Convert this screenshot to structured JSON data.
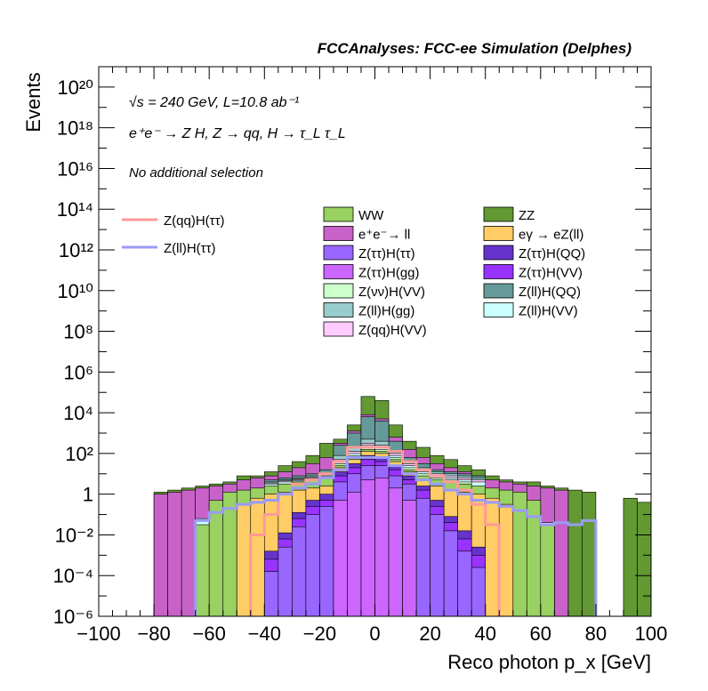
{
  "chart_data": {
    "type": "bar",
    "title": "FCCAnalyses: FCC-ee Simulation (Delphes)",
    "xlabel": "Reco photon p_x [GeV]",
    "ylabel": "Events",
    "xlim": [
      -100,
      100
    ],
    "ylim": [
      1e-06,
      1e+21
    ],
    "yscale": "log",
    "grid": false,
    "annotations": {
      "energy_lumi": "√s = 240 GeV, L=10.8 ab⁻¹",
      "process": "e⁺e⁻ → Z H, Z → qq, H → τ_L τ_L",
      "selection": "No additional selection"
    },
    "x_ticks": [
      "−100",
      "−80",
      "−60",
      "−40",
      "−20",
      "0",
      "20",
      "40",
      "60",
      "80",
      "100"
    ],
    "y_ticks": [
      "10⁻⁶",
      "10⁻⁴",
      "10⁻²",
      "1",
      "10²",
      "10⁴",
      "10⁶",
      "10⁸",
      "10¹⁰",
      "10¹²",
      "10¹⁴",
      "10¹⁶",
      "10¹⁸",
      "10²⁰"
    ],
    "legend_signal": [
      {
        "name": "Z(qq)H(ττ)",
        "color": "#ff9a96"
      },
      {
        "name": "Z(ll)H(ττ)",
        "color": "#9a9af5"
      }
    ],
    "legend_background": [
      {
        "name": "WW",
        "color": "#99d162"
      },
      {
        "name": "ZZ",
        "color": "#629932"
      },
      {
        "name": "e⁺e⁻→ ll",
        "color": "#c862c8"
      },
      {
        "name": "eγ → eZ(ll)",
        "color": "#ffcc66"
      },
      {
        "name": "Z(ττ)H(ττ)",
        "color": "#9966ff"
      },
      {
        "name": "Z(ττ)H(QQ)",
        "color": "#6633cc"
      },
      {
        "name": "Z(ττ)H(gg)",
        "color": "#cc66ff"
      },
      {
        "name": "Z(ττ)H(VV)",
        "color": "#9933ff"
      },
      {
        "name": "Z(νν)H(VV)",
        "color": "#ccffcc"
      },
      {
        "name": "Z(ll)H(QQ)",
        "color": "#669999"
      },
      {
        "name": "Z(ll)H(gg)",
        "color": "#99cccc"
      },
      {
        "name": "Z(ll)H(VV)",
        "color": "#ccffff"
      },
      {
        "name": "Z(qq)H(VV)",
        "color": "#ffccff"
      }
    ],
    "bin_width": 5,
    "bin_lows": [
      -100,
      -95,
      -90,
      -85,
      -80,
      -75,
      -70,
      -65,
      -60,
      -55,
      -50,
      -45,
      -40,
      -35,
      -30,
      -25,
      -20,
      -15,
      -10,
      -5,
      0,
      5,
      10,
      15,
      20,
      25,
      30,
      35,
      40,
      45,
      50,
      55,
      60,
      65,
      70,
      75,
      80,
      85,
      90,
      95
    ],
    "stack_order": [
      "Z(ττ)H(gg)",
      "Z(ττ)H(ττ)",
      "Z(ττ)H(VV)",
      "Z(ττ)H(QQ)",
      "eγ → eZ(ll)",
      "WW",
      "Z(νν)H(VV)",
      "Z(ll)H(VV)",
      "Z(qq)H(VV)",
      "Z(ll)H(gg)",
      "Z(ll)H(QQ)",
      "e⁺e⁻→ ll",
      "ZZ"
    ],
    "stack_totals_log10": [
      -6,
      -6,
      -6,
      -6,
      0.1,
      0.2,
      0.3,
      0.4,
      0.5,
      0.6,
      0.9,
      0.9,
      1.1,
      1.4,
      1.6,
      1.9,
      2.5,
      2.7,
      3.4,
      4.8,
      4.6,
      3.4,
      2.6,
      2.3,
      1.9,
      1.7,
      1.4,
      1.2,
      0.9,
      0.7,
      0.6,
      0.6,
      0.4,
      0.3,
      0.2,
      0.1,
      -6,
      -6,
      -0.2,
      -0.4
    ],
    "series": [
      {
        "name": "Z(ττ)H(gg)",
        "values_log10": [
          null,
          null,
          null,
          null,
          null,
          null,
          null,
          null,
          null,
          null,
          null,
          null,
          null,
          null,
          null,
          null,
          null,
          -0.3,
          0.1,
          0.7,
          0.8,
          0.3,
          -0.3,
          null,
          null,
          null,
          null,
          null,
          null,
          null,
          null,
          null,
          null,
          null,
          null,
          null,
          null,
          null,
          null,
          null
        ]
      },
      {
        "name": "Z(ττ)H(ττ)",
        "values_log10": [
          null,
          null,
          null,
          null,
          null,
          null,
          null,
          null,
          null,
          null,
          null,
          null,
          -3.8,
          -2.6,
          -1.6,
          -1.0,
          -0.6,
          0.6,
          1.0,
          1.4,
          1.4,
          0.9,
          0.5,
          -0.2,
          -1.0,
          -1.8,
          -2.8,
          -3.6,
          null,
          null,
          null,
          null,
          null,
          null,
          null,
          null,
          null,
          null,
          null,
          null
        ]
      },
      {
        "name": "Z(ττ)H(VV)",
        "values_log10": [
          null,
          null,
          null,
          null,
          null,
          null,
          null,
          null,
          null,
          null,
          null,
          null,
          -3.2,
          -2.2,
          -1.2,
          -0.6,
          -0.3,
          0.9,
          1.3,
          1.7,
          1.6,
          1.2,
          0.7,
          0.2,
          -0.6,
          -1.4,
          -2.2,
          -3.0,
          null,
          null,
          null,
          null,
          null,
          null,
          null,
          null,
          null,
          null,
          null,
          null
        ]
      },
      {
        "name": "Z(ττ)H(QQ)",
        "values_log10": [
          null,
          null,
          null,
          null,
          null,
          null,
          null,
          null,
          null,
          null,
          null,
          null,
          -2.8,
          -1.9,
          -0.9,
          -0.3,
          0.0,
          1.1,
          1.5,
          1.9,
          1.8,
          1.4,
          0.9,
          0.4,
          -0.3,
          -1.1,
          -1.8,
          -2.6,
          null,
          null,
          null,
          null,
          null,
          null,
          null,
          null,
          null,
          null,
          null,
          null
        ]
      },
      {
        "name": "eγ → eZ(ll)",
        "values_log10": [
          null,
          null,
          null,
          null,
          null,
          null,
          null,
          null,
          null,
          null,
          -0.5,
          -0.2,
          0.0,
          0.1,
          0.2,
          0.3,
          0.4,
          1.3,
          1.7,
          2.1,
          2.0,
          1.6,
          1.1,
          0.7,
          0.4,
          0.2,
          0.1,
          0.0,
          -0.2,
          -0.5,
          null,
          null,
          null,
          null,
          null,
          null,
          null,
          null,
          null,
          null
        ]
      },
      {
        "name": "WW",
        "values_log10": [
          null,
          null,
          null,
          null,
          null,
          null,
          null,
          -1.5,
          -0.3,
          0.1,
          0.2,
          0.3,
          0.4,
          0.5,
          0.6,
          0.7,
          0.8,
          1.4,
          1.8,
          2.2,
          2.1,
          1.7,
          1.2,
          0.9,
          0.7,
          0.6,
          0.5,
          0.4,
          0.3,
          0.2,
          0.1,
          -0.3,
          -1.5,
          null,
          null,
          null,
          null,
          null,
          null,
          null
        ]
      },
      {
        "name": "Z(νν)H(VV)",
        "values_log10": [
          null,
          null,
          null,
          null,
          null,
          null,
          null,
          null,
          null,
          null,
          null,
          null,
          null,
          null,
          0.65,
          0.75,
          0.85,
          1.5,
          1.9,
          2.3,
          2.2,
          1.8,
          1.3,
          1.0,
          0.8,
          0.7,
          0.6,
          null,
          null,
          null,
          null,
          null,
          null,
          null,
          null,
          null,
          null,
          null,
          null,
          null
        ]
      },
      {
        "name": "Z(ll)H(VV)",
        "values_log10": [
          null,
          null,
          null,
          null,
          null,
          null,
          null,
          -1.2,
          -1.0,
          -0.8,
          -0.6,
          -0.4,
          0.5,
          0.6,
          0.7,
          0.8,
          0.9,
          1.6,
          2.0,
          2.4,
          2.3,
          1.9,
          1.4,
          1.1,
          0.9,
          0.8,
          0.7,
          0.6,
          -0.6,
          -0.8,
          -1.0,
          -1.2,
          -1.4,
          null,
          null,
          null,
          null,
          null,
          null,
          null
        ]
      },
      {
        "name": "Z(qq)H(VV)",
        "values_log10": [
          null,
          null,
          null,
          null,
          null,
          null,
          null,
          null,
          null,
          null,
          null,
          null,
          0.55,
          0.65,
          0.75,
          0.85,
          0.95,
          1.7,
          2.1,
          2.5,
          2.4,
          2.0,
          1.5,
          1.2,
          1.0,
          0.9,
          0.8,
          0.7,
          null,
          null,
          null,
          null,
          null,
          null,
          null,
          null,
          null,
          null,
          null,
          null
        ]
      },
      {
        "name": "Z(ll)H(gg)",
        "values_log10": [
          null,
          null,
          null,
          null,
          null,
          null,
          null,
          null,
          null,
          null,
          null,
          null,
          0.6,
          0.7,
          0.8,
          0.9,
          1.0,
          1.9,
          2.3,
          2.7,
          2.6,
          2.1,
          1.6,
          1.3,
          1.1,
          1.0,
          0.9,
          0.8,
          null,
          null,
          null,
          null,
          null,
          null,
          null,
          null,
          null,
          null,
          null,
          null
        ]
      },
      {
        "name": "Z(ll)H(QQ)",
        "values_log10": [
          null,
          null,
          null,
          null,
          null,
          null,
          null,
          null,
          null,
          null,
          null,
          null,
          0.7,
          0.8,
          0.9,
          1.0,
          1.2,
          2.4,
          3.0,
          3.8,
          3.6,
          2.6,
          1.8,
          1.5,
          1.2,
          1.1,
          1.0,
          0.9,
          null,
          null,
          null,
          null,
          null,
          null,
          null,
          null,
          null,
          null,
          null,
          null
        ]
      },
      {
        "name": "e⁺e⁻→ ll",
        "values_log10": [
          null,
          null,
          null,
          null,
          0.0,
          0.1,
          0.2,
          0.3,
          0.4,
          0.5,
          0.7,
          0.8,
          0.9,
          1.1,
          1.3,
          1.5,
          1.8,
          2.5,
          3.1,
          3.9,
          3.7,
          2.8,
          2.2,
          1.8,
          1.5,
          1.3,
          1.1,
          0.9,
          0.7,
          0.6,
          0.5,
          0.4,
          0.3,
          0.2,
          null,
          null,
          null,
          null,
          null,
          null
        ]
      },
      {
        "name": "ZZ",
        "values_log10": [
          null,
          null,
          null,
          null,
          0.1,
          0.2,
          0.3,
          0.4,
          0.5,
          0.6,
          0.9,
          0.9,
          1.1,
          1.4,
          1.6,
          1.9,
          2.5,
          2.7,
          3.4,
          4.8,
          4.6,
          3.4,
          2.6,
          2.3,
          1.9,
          1.7,
          1.4,
          1.2,
          0.9,
          0.7,
          0.6,
          0.6,
          0.4,
          0.3,
          0.2,
          0.1,
          null,
          null,
          -0.2,
          -0.4
        ]
      }
    ],
    "signal_lines": [
      {
        "name": "Z(qq)H(ττ)",
        "values_log10": [
          null,
          null,
          null,
          null,
          null,
          null,
          null,
          null,
          null,
          null,
          null,
          -2.0,
          -1.0,
          0.0,
          0.5,
          0.7,
          1.0,
          1.6,
          2.3,
          2.3,
          2.3,
          2.1,
          1.6,
          1.2,
          0.9,
          0.6,
          0.2,
          -0.5,
          -1.5,
          null,
          null,
          null,
          null,
          null,
          null,
          null,
          null,
          null,
          null,
          null
        ]
      },
      {
        "name": "Z(ll)H(ττ)",
        "values_log10": [
          null,
          null,
          null,
          null,
          null,
          null,
          null,
          -1.3,
          -0.9,
          -0.7,
          -0.5,
          -0.4,
          -0.3,
          0.0,
          0.3,
          0.5,
          0.8,
          1.2,
          1.8,
          1.8,
          1.8,
          1.4,
          1.0,
          0.7,
          0.5,
          0.2,
          0.0,
          -0.3,
          -0.4,
          -0.6,
          -0.8,
          -1.1,
          -1.5,
          -1.4,
          -1.5,
          -1.3,
          null,
          null,
          null,
          null
        ]
      }
    ]
  }
}
